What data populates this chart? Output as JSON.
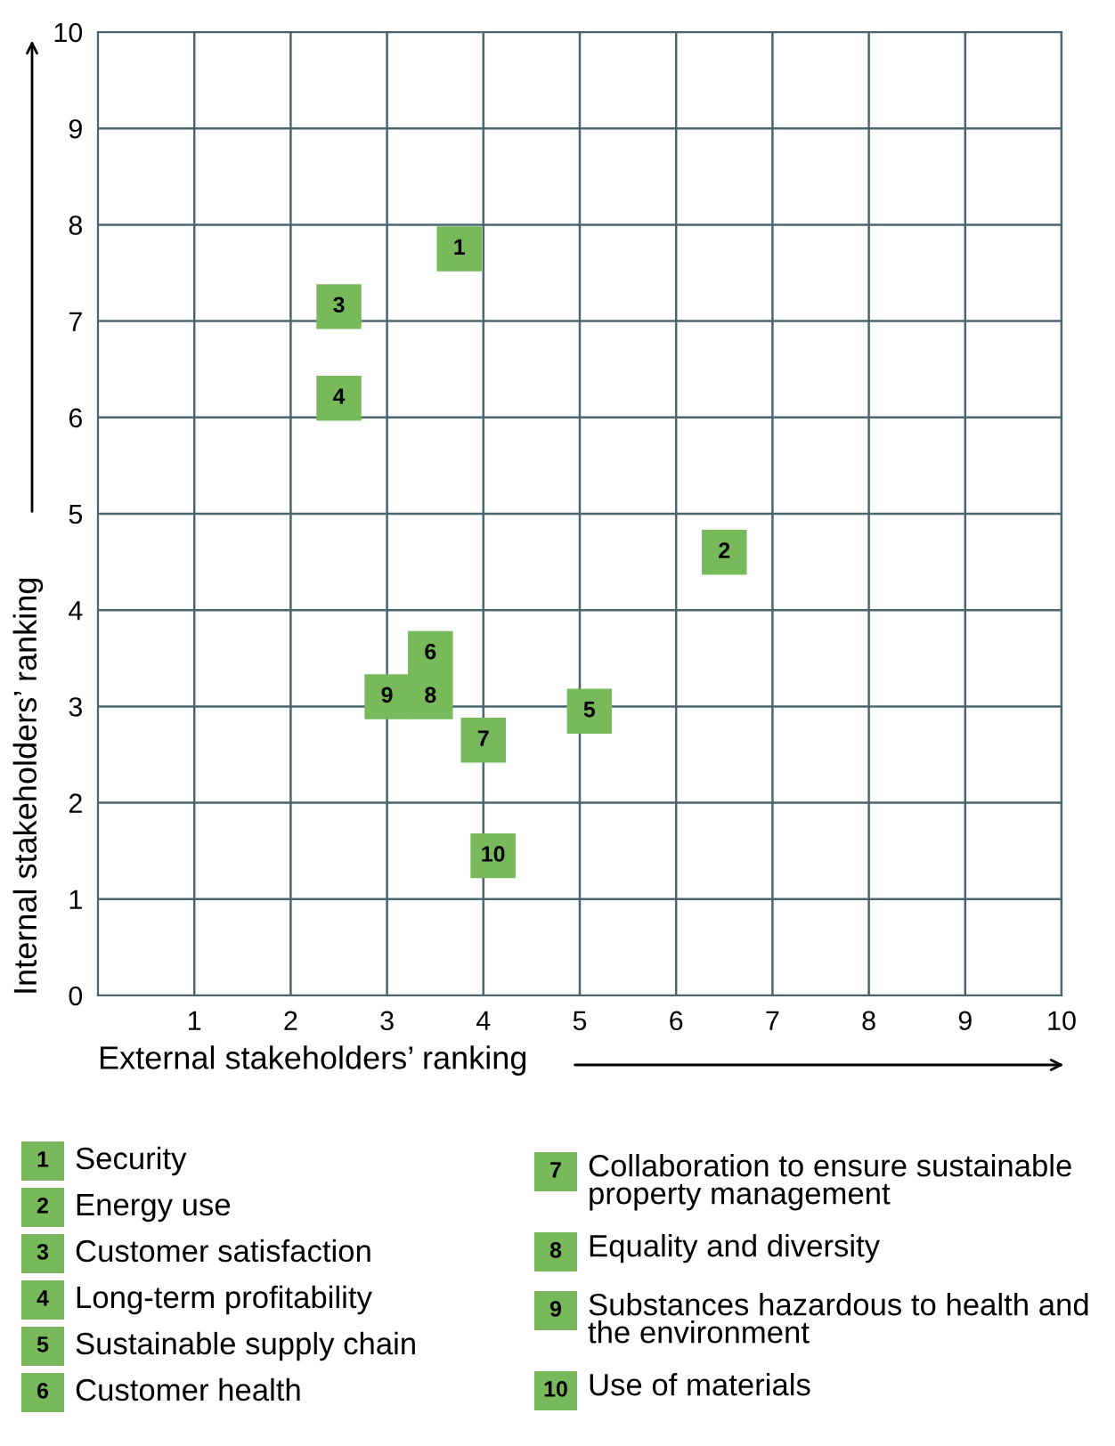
{
  "chart_data": {
    "type": "scatter",
    "xlabel": "External stakeholders’ ranking",
    "ylabel": "Internal stakeholders’ ranking",
    "xlim": [
      0,
      10
    ],
    "ylim": [
      0,
      10
    ],
    "xticks": [
      1,
      2,
      3,
      4,
      5,
      6,
      7,
      8,
      9,
      10
    ],
    "yticks": [
      0,
      1,
      2,
      3,
      4,
      5,
      6,
      7,
      8,
      9,
      10
    ],
    "grid": true,
    "legend": "bottom",
    "marker": "square",
    "annotations": [
      {
        "text": "1",
        "x": 3.75,
        "y": 7.75
      },
      {
        "text": "2",
        "x": 6.5,
        "y": 4.6
      },
      {
        "text": "3",
        "x": 2.5,
        "y": 7.15
      },
      {
        "text": "4",
        "x": 2.5,
        "y": 6.2
      },
      {
        "text": "5",
        "x": 5.1,
        "y": 2.95
      },
      {
        "text": "6",
        "x": 3.45,
        "y": 3.55
      },
      {
        "text": "7",
        "x": 4.0,
        "y": 2.65
      },
      {
        "text": "8",
        "x": 3.45,
        "y": 3.1
      },
      {
        "text": "9",
        "x": 3.0,
        "y": 3.1
      },
      {
        "text": "10",
        "x": 4.1,
        "y": 1.45
      }
    ],
    "series": [
      {
        "name": "Security",
        "color": "#78b95b",
        "x": [
          3.75
        ],
        "values": [
          7.75
        ]
      },
      {
        "name": "Energy use",
        "color": "#78b95b",
        "x": [
          6.5
        ],
        "values": [
          4.6
        ]
      },
      {
        "name": "Customer satisfaction",
        "color": "#78b95b",
        "x": [
          2.5
        ],
        "values": [
          7.15
        ]
      },
      {
        "name": "Long-term profitability",
        "color": "#78b95b",
        "x": [
          2.5
        ],
        "values": [
          6.2
        ]
      },
      {
        "name": "Sustainable supply chain",
        "color": "#78b95b",
        "x": [
          5.1
        ],
        "values": [
          2.95
        ]
      },
      {
        "name": "Customer health",
        "color": "#78b95b",
        "x": [
          3.45
        ],
        "values": [
          3.55
        ]
      },
      {
        "name": "Collaboration to ensure sustainable property management",
        "color": "#78b95b",
        "x": [
          4.0
        ],
        "values": [
          2.65
        ]
      },
      {
        "name": "Equality and diversity",
        "color": "#78b95b",
        "x": [
          3.45
        ],
        "values": [
          3.1
        ]
      },
      {
        "name": "Substances hazardous to health and the environment",
        "color": "#78b95b",
        "x": [
          3.0
        ],
        "values": [
          3.1
        ]
      },
      {
        "name": "Use of materials",
        "color": "#78b95b",
        "x": [
          4.1
        ],
        "values": [
          1.45
        ]
      }
    ]
  }
}
